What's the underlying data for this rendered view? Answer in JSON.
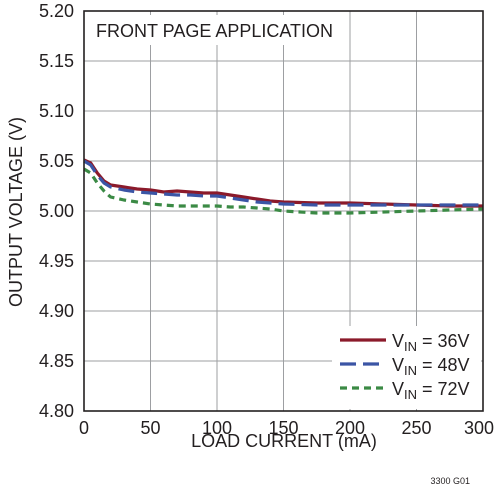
{
  "chart_data": {
    "type": "line",
    "annotation": "FRONT PAGE APPLICATION",
    "xlabel": "LOAD CURRENT (mA)",
    "ylabel": "OUTPUT VOLTAGE (V)",
    "xlim": [
      0,
      300
    ],
    "ylim": [
      4.8,
      5.2
    ],
    "xticks": [
      "0",
      "50",
      "100",
      "150",
      "200",
      "250",
      "300"
    ],
    "yticks": [
      "4.80",
      "4.85",
      "4.90",
      "4.95",
      "5.00",
      "5.05",
      "5.10",
      "5.15",
      "5.20"
    ],
    "grid": true,
    "legend_position": "bottom-right",
    "series": [
      {
        "name_main": "V",
        "name_sub": "IN",
        "name_rest": " = 36V",
        "color": "#8b1a2b",
        "dash": "none",
        "x": [
          0,
          5,
          10,
          15,
          20,
          30,
          40,
          50,
          60,
          70,
          80,
          90,
          100,
          110,
          120,
          130,
          140,
          150,
          175,
          200,
          225,
          250,
          275,
          300
        ],
        "y": [
          5.051,
          5.048,
          5.038,
          5.03,
          5.026,
          5.024,
          5.022,
          5.021,
          5.019,
          5.02,
          5.019,
          5.018,
          5.018,
          5.016,
          5.014,
          5.012,
          5.01,
          5.009,
          5.008,
          5.008,
          5.007,
          5.006,
          5.005,
          5.005
        ]
      },
      {
        "name_main": "V",
        "name_sub": "IN",
        "name_rest": " = 48V",
        "color": "#3b55a5",
        "dash": "16 7",
        "x": [
          0,
          5,
          10,
          15,
          20,
          30,
          40,
          50,
          60,
          70,
          80,
          90,
          100,
          110,
          120,
          130,
          140,
          150,
          175,
          200,
          225,
          250,
          275,
          300
        ],
        "y": [
          5.05,
          5.046,
          5.036,
          5.028,
          5.024,
          5.021,
          5.019,
          5.018,
          5.017,
          5.016,
          5.016,
          5.015,
          5.015,
          5.013,
          5.011,
          5.009,
          5.008,
          5.007,
          5.006,
          5.006,
          5.006,
          5.006,
          5.006,
          5.006
        ]
      },
      {
        "name_main": "V",
        "name_sub": "IN",
        "name_rest": " = 72V",
        "color": "#3b8a45",
        "dash": "7 5",
        "x": [
          0,
          5,
          10,
          15,
          20,
          30,
          40,
          50,
          60,
          70,
          80,
          90,
          100,
          110,
          120,
          130,
          140,
          150,
          175,
          200,
          225,
          250,
          275,
          300
        ],
        "y": [
          5.042,
          5.038,
          5.028,
          5.02,
          5.014,
          5.011,
          5.009,
          5.007,
          5.006,
          5.005,
          5.005,
          5.005,
          5.005,
          5.004,
          5.004,
          5.003,
          5.002,
          5.0,
          4.998,
          4.998,
          4.999,
          5.0,
          5.001,
          5.002
        ]
      }
    ]
  },
  "figure_id": "3300 G01"
}
